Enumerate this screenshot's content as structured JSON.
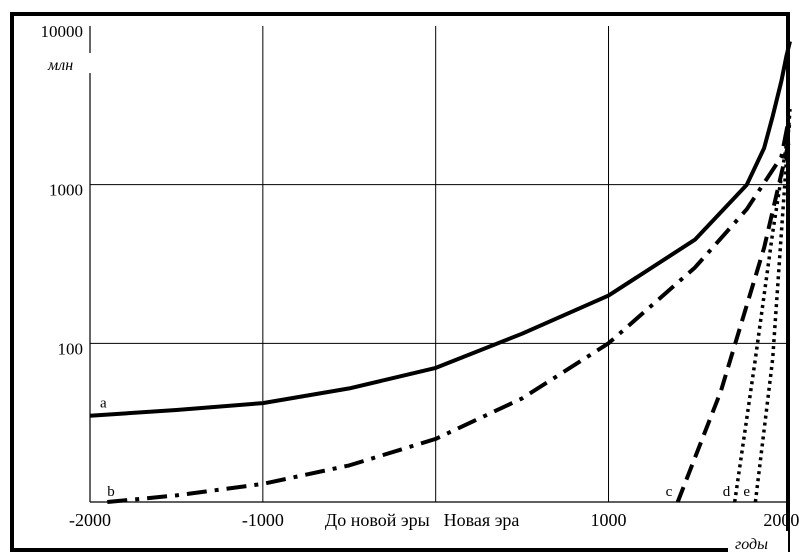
{
  "chart_data": {
    "type": "line",
    "title": "",
    "xlabel": "годы",
    "ylabel": "млн",
    "y_scale": "log",
    "xlim": [
      -2000,
      2050
    ],
    "ylim": [
      10,
      10000
    ],
    "grid": true,
    "y_ticks": [
      "10000",
      "1000",
      "100"
    ],
    "x_ticks": [
      "-2000",
      "-1000",
      "1000",
      "2000"
    ],
    "era_labels": [
      "До новой эры",
      "Новая эра"
    ],
    "series": [
      {
        "name": "a",
        "style": "solid",
        "x": [
          -2000,
          -1500,
          -1000,
          -500,
          0,
          500,
          1000,
          1500,
          1800,
          1900,
          1950,
          2000,
          2030,
          2050
        ],
        "y": [
          35,
          38,
          42,
          52,
          70,
          115,
          200,
          450,
          1000,
          1700,
          2700,
          4500,
          6500,
          8000
        ]
      },
      {
        "name": "b",
        "style": "dash-dot",
        "x": [
          -1900,
          -1500,
          -1000,
          -500,
          0,
          500,
          1000,
          1500,
          1800,
          2000,
          2040
        ],
        "y": [
          10,
          11,
          13,
          17,
          25,
          45,
          100,
          300,
          700,
          1500,
          2500
        ]
      },
      {
        "name": "c",
        "style": "dashed",
        "x": [
          1400,
          1650,
          1900,
          2050
        ],
        "y": [
          10,
          50,
          400,
          2000
        ]
      },
      {
        "name": "d",
        "style": "dotted",
        "x": [
          1730,
          1850,
          1950,
          2050
        ],
        "y": [
          10,
          80,
          500,
          2500
        ]
      },
      {
        "name": "e",
        "style": "dotted",
        "x": [
          1850,
          1950,
          2000,
          2050
        ],
        "y": [
          10,
          80,
          500,
          3000
        ]
      }
    ]
  }
}
